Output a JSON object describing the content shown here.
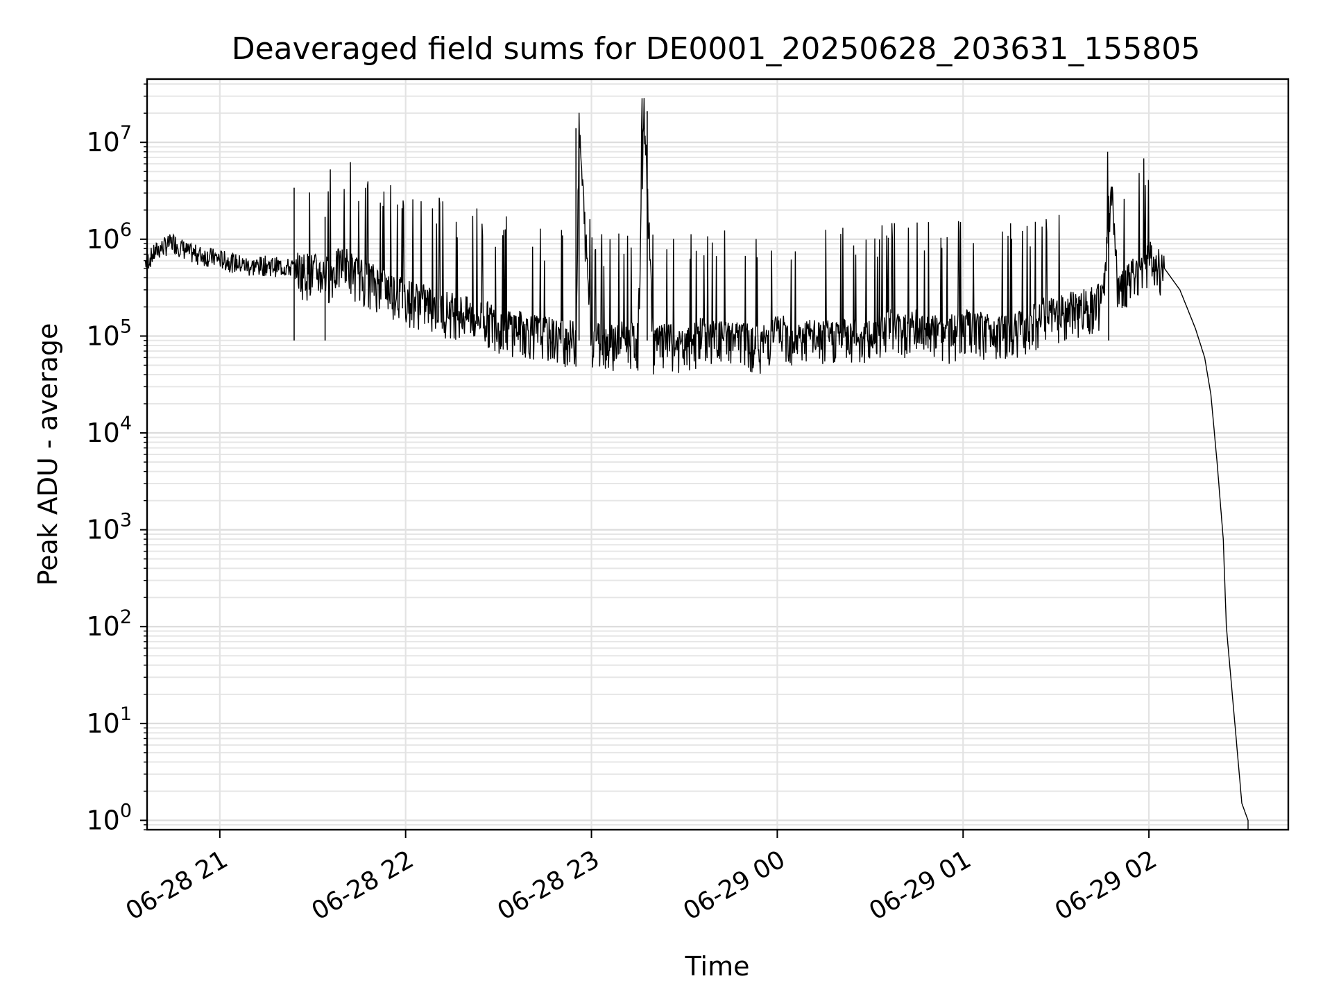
{
  "chart_data": {
    "type": "line",
    "title": "Deaveraged field sums for DE0001_20250628_203631_155805",
    "xlabel": "Time",
    "ylabel": "Peak ADU - average",
    "yscale": "log",
    "xlim": [
      "06-28 20:36:31",
      "06-29 02:45:00"
    ],
    "ylim": [
      0.8,
      45000000
    ],
    "grid": true,
    "line_color": "#000000",
    "x_ticks": [
      {
        "label": "06-28 21",
        "value": "06-28 21:00"
      },
      {
        "label": "06-28 22",
        "value": "06-28 22:00"
      },
      {
        "label": "06-28 23",
        "value": "06-28 23:00"
      },
      {
        "label": "06-29 00",
        "value": "06-29 00:00"
      },
      {
        "label": "06-29 01",
        "value": "06-29 01:00"
      },
      {
        "label": "06-29 02",
        "value": "06-29 02:00"
      }
    ],
    "y_ticks": [
      {
        "base": "10",
        "exp": "0",
        "value": 1
      },
      {
        "base": "10",
        "exp": "1",
        "value": 10
      },
      {
        "base": "10",
        "exp": "2",
        "value": 100
      },
      {
        "base": "10",
        "exp": "3",
        "value": 1000
      },
      {
        "base": "10",
        "exp": "4",
        "value": 10000
      },
      {
        "base": "10",
        "exp": "5",
        "value": 100000
      },
      {
        "base": "10",
        "exp": "6",
        "value": 1000000
      },
      {
        "base": "10",
        "exp": "7",
        "value": 10000000
      }
    ],
    "series": [
      {
        "x": [
          "06-28 20:36",
          "06-28 20:40",
          "06-28 20:45",
          "06-28 20:50",
          "06-28 20:55",
          "06-28 21:00",
          "06-28 21:05",
          "06-28 21:10",
          "06-28 21:15",
          "06-28 21:20",
          "06-28 21:25",
          "06-28 21:30",
          "06-28 21:35",
          "06-28 21:40",
          "06-28 21:45",
          "06-28 21:50",
          "06-28 21:55",
          "06-28 22:00",
          "06-28 22:05",
          "06-28 22:10",
          "06-28 22:15",
          "06-28 22:20",
          "06-28 22:25",
          "06-28 22:30",
          "06-28 22:35",
          "06-28 22:40",
          "06-28 22:45",
          "06-28 22:50",
          "06-28 22:55",
          "06-28 22:56",
          "06-28 23:00",
          "06-28 23:05",
          "06-28 23:10",
          "06-28 23:15",
          "06-28 23:17",
          "06-28 23:20",
          "06-28 23:25",
          "06-28 23:30",
          "06-28 23:35",
          "06-28 23:40",
          "06-28 23:45",
          "06-28 23:50",
          "06-28 23:55",
          "06-29 00:00",
          "06-29 00:05",
          "06-29 00:10",
          "06-29 00:15",
          "06-29 00:20",
          "06-29 00:25",
          "06-29 00:30",
          "06-29 00:35",
          "06-29 00:40",
          "06-29 00:45",
          "06-29 00:50",
          "06-29 00:55",
          "06-29 01:00",
          "06-29 01:05",
          "06-29 01:10",
          "06-29 01:15",
          "06-29 01:20",
          "06-29 01:25",
          "06-29 01:30",
          "06-29 01:35",
          "06-29 01:40",
          "06-29 01:45",
          "06-29 01:48",
          "06-29 01:50",
          "06-29 01:55",
          "06-29 02:00",
          "06-29 02:05",
          "06-29 02:10",
          "06-29 02:15",
          "06-29 02:18",
          "06-29 02:20",
          "06-29 02:22",
          "06-29 02:24",
          "06-29 02:25",
          "06-29 02:30",
          "06-29 02:32"
        ],
        "y": [
          550000,
          750000,
          900000,
          700000,
          650000,
          600000,
          550000,
          500000,
          520000,
          500000,
          480000,
          450000,
          420000,
          550000,
          400000,
          350000,
          300000,
          250000,
          220000,
          200000,
          180000,
          160000,
          150000,
          130000,
          120000,
          110000,
          100000,
          95000,
          90000,
          13000000,
          95000,
          85000,
          90000,
          85000,
          21000000,
          80000,
          85000,
          70000,
          100000,
          90000,
          95000,
          85000,
          80000,
          110000,
          90000,
          95000,
          90000,
          100000,
          95000,
          90000,
          130000,
          110000,
          120000,
          105000,
          100000,
          120000,
          110000,
          115000,
          105000,
          125000,
          150000,
          160000,
          180000,
          200000,
          220000,
          2800000,
          300000,
          400000,
          600000,
          500000,
          300000,
          120000,
          60000,
          25000,
          5000,
          800,
          100,
          1.5,
          1.0
        ]
      }
    ],
    "spikes": [
      {
        "x": "06-28 21:24",
        "y": 3400000
      },
      {
        "x": "06-28 21:34",
        "y": 1700000
      },
      {
        "x": "06-28 22:55",
        "y": 14000000
      },
      {
        "x": "06-28 22:56",
        "y": 13500000
      },
      {
        "x": "06-28 23:18",
        "y": 21000000
      },
      {
        "x": "06-29 01:47",
        "y": 2800000
      }
    ]
  }
}
